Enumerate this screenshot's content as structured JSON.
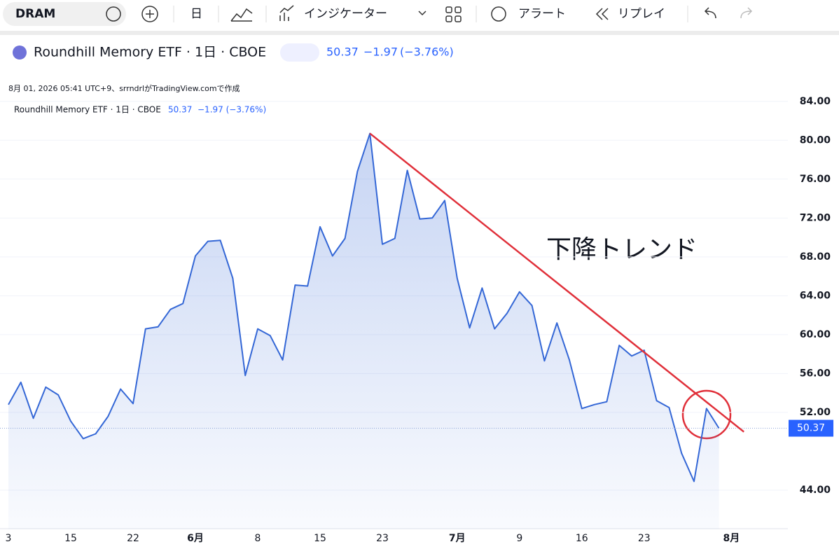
{
  "toolbar": {
    "symbol": "DRAM",
    "interval": "日",
    "indicators": "インジケーター",
    "alert": "アラート",
    "replay": "リプレイ"
  },
  "header": {
    "title": "Roundhill Memory ETF · 1日 · CBOE",
    "price": "50.37",
    "change": "−1.97",
    "change_pct": "(−3.76%)"
  },
  "chart_data": {
    "type": "area",
    "caption": "8月 01, 2026 05:41 UTC+9、srrndrlがTradingView.comで作成",
    "legend_title": "Roundhill Memory ETF · 1日 · CBOE",
    "legend_price": "50.37",
    "legend_change": "−1.97 (−3.76%)",
    "annotation": "下降トレンド",
    "color": "#3467d6",
    "categories": [
      "3",
      null,
      null,
      null,
      null,
      "15",
      null,
      null,
      null,
      null,
      "22",
      null,
      null,
      null,
      null,
      "6月",
      null,
      null,
      null,
      null,
      "8",
      null,
      null,
      null,
      null,
      "15",
      null,
      null,
      null,
      null,
      "23",
      null,
      null,
      null,
      null,
      null,
      "7月",
      null,
      null,
      null,
      null,
      "9",
      null,
      null,
      null,
      null,
      "16",
      null,
      null,
      null,
      null,
      "23",
      null,
      null,
      null,
      null,
      null,
      null,
      "8月",
      null
    ],
    "values": [
      52.8,
      55.1,
      51.4,
      54.6,
      53.8,
      51.1,
      49.3,
      49.8,
      51.6,
      54.4,
      52.9,
      60.6,
      60.8,
      62.6,
      63.2,
      68.1,
      69.6,
      69.7,
      65.8,
      55.8,
      60.6,
      59.9,
      57.4,
      65.1,
      65.0,
      71.1,
      68.1,
      69.9,
      76.8,
      80.7,
      69.3,
      69.9,
      76.9,
      71.9,
      72.0,
      73.8,
      65.8,
      60.7,
      64.8,
      60.6,
      62.2,
      64.4,
      63.0,
      57.3,
      61.2,
      57.4,
      52.4,
      52.8,
      53.1,
      58.9,
      57.8,
      58.4,
      53.2,
      52.5,
      47.8,
      44.9,
      52.4,
      50.37,
      null,
      null
    ],
    "trendline": {
      "x": [
        29,
        59
      ],
      "values": [
        80.7,
        50.0
      ],
      "color": "#e0303a"
    },
    "ylim": [
      40,
      86
    ],
    "yticks": [
      {
        "value": 44,
        "label": "44.00"
      },
      {
        "value": 52,
        "label": "52.00"
      },
      {
        "value": 56,
        "label": "56.00"
      },
      {
        "value": 60,
        "label": "60.00"
      },
      {
        "value": 64,
        "label": "64.00"
      },
      {
        "value": 68,
        "label": "68.00"
      },
      {
        "value": 72,
        "label": "72.00"
      },
      {
        "value": 76,
        "label": "76.00"
      },
      {
        "value": 80,
        "label": "80.00"
      },
      {
        "value": 84,
        "label": "84.00"
      }
    ],
    "grid": true
  }
}
